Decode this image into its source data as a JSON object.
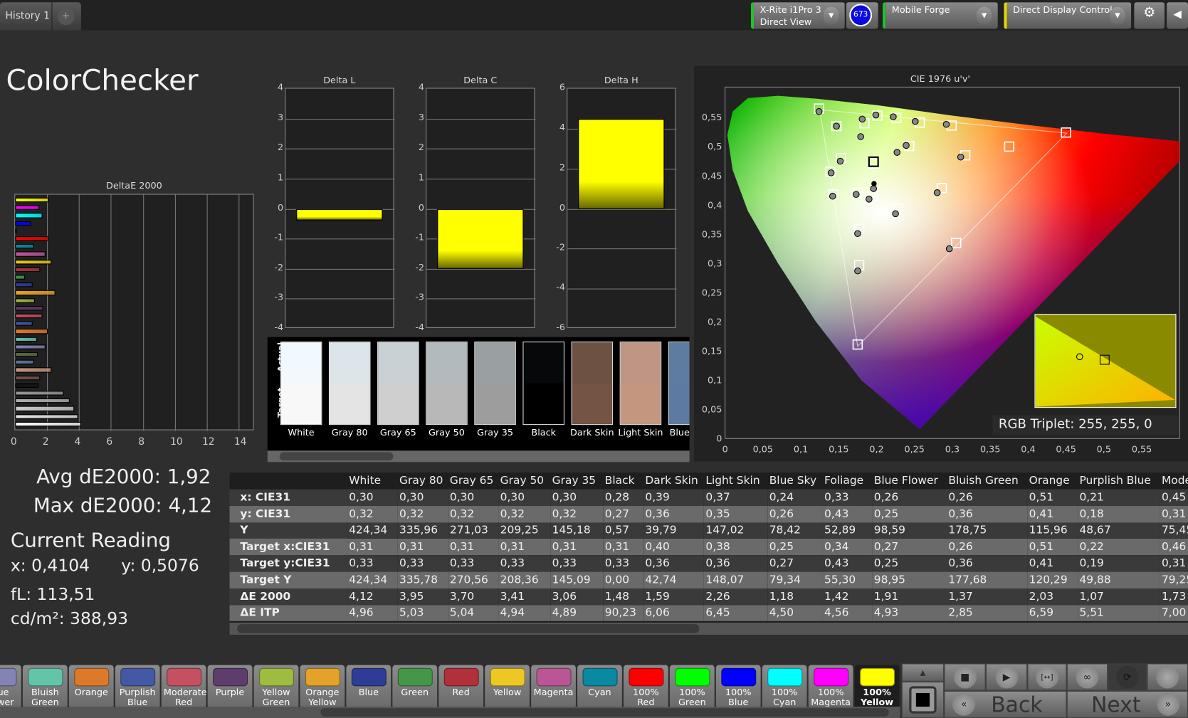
{
  "header": {
    "tab": "History 1",
    "add_tab": "+",
    "meter": {
      "line1": "X-Rite i1Pro 3",
      "line2": "Direct View",
      "badge": "673"
    },
    "generator": "Mobile Forge",
    "display": "Direct Display Control",
    "meter_color": "#22c22c",
    "generator_color": "#22c22c",
    "display_color": "#e6d800"
  },
  "page_title": "ColorChecker",
  "deltaE_chart": {
    "title": "DeltaE 2000",
    "xlim": [
      0,
      15
    ],
    "ticks": [
      "0",
      "2",
      "4",
      "6",
      "8",
      "10",
      "12",
      "14"
    ]
  },
  "delta_charts": [
    {
      "title": "Delta L",
      "ylim": [
        -4,
        4
      ],
      "ticks": [
        "4",
        "3",
        "2",
        "1",
        "0",
        "-1",
        "-2",
        "-3",
        "-4"
      ],
      "value": -0.4
    },
    {
      "title": "Delta C",
      "ylim": [
        -4,
        4
      ],
      "ticks": [
        "4",
        "3",
        "2",
        "1",
        "0",
        "-1",
        "-2",
        "-3",
        "-4"
      ],
      "value": -2.0
    },
    {
      "title": "Delta H",
      "ylim": [
        -6,
        6
      ],
      "ticks": [
        "6",
        "4",
        "2",
        "0",
        "-2",
        "-4",
        "-6"
      ],
      "value": 4.5
    }
  ],
  "swatch_strip": {
    "actual_label": "Actual",
    "target_label": "Target",
    "items": [
      {
        "name": "White",
        "actual": "#f2f9fe",
        "target": "#f8f8f8"
      },
      {
        "name": "Gray 80",
        "actual": "#dce5ea",
        "target": "#e4e4e4"
      },
      {
        "name": "Gray 65",
        "actual": "#c9d1d5",
        "target": "#cfcfcf"
      },
      {
        "name": "Gray 50",
        "actual": "#b3babd",
        "target": "#b8b8b8"
      },
      {
        "name": "Gray 35",
        "actual": "#9a9fa2",
        "target": "#9d9d9d"
      },
      {
        "name": "Black",
        "actual": "#07080a",
        "target": "#000000"
      },
      {
        "name": "Dark Skin",
        "actual": "#6d5244",
        "target": "#735445"
      },
      {
        "name": "Light Skin",
        "actual": "#be9683",
        "target": "#c4957f"
      },
      {
        "name": "Blue Sky",
        "actual": "#5e7ba0",
        "target": "#5d7aa2"
      }
    ]
  },
  "summary": {
    "avg": "Avg dE2000: 1,92",
    "max": "Max dE2000: 4,12",
    "current_label": "Current Reading",
    "x": "x: 0,4104",
    "y": "y: 0,5076",
    "fl": "fL: 113,51",
    "cdm2": "cd/m²: 388,93"
  },
  "cie": {
    "title": "CIE 1976 u'v'",
    "xlim": [
      0,
      0.6
    ],
    "ylim": [
      0,
      0.585
    ],
    "xticks": [
      "0",
      "0,05",
      "0,1",
      "0,15",
      "0,2",
      "0,25",
      "0,3",
      "0,35",
      "0,4",
      "0,45",
      "0,5",
      "0,55"
    ],
    "yticks": [
      "0",
      "0,05",
      "0,1",
      "0,15",
      "0,2",
      "0,25",
      "0,3",
      "0,35",
      "0,4",
      "0,45",
      "0,5",
      "0,55"
    ],
    "gamut": [
      [
        0.125,
        0.563
      ],
      [
        0.451,
        0.523
      ],
      [
        0.175,
        0.158
      ]
    ],
    "targets": [
      [
        0.124,
        0.565
      ],
      [
        0.147,
        0.535
      ],
      [
        0.184,
        0.54
      ],
      [
        0.201,
        0.553
      ],
      [
        0.226,
        0.549
      ],
      [
        0.257,
        0.541
      ],
      [
        0.299,
        0.536
      ],
      [
        0.45,
        0.524
      ],
      [
        0.375,
        0.5
      ],
      [
        0.317,
        0.485
      ],
      [
        0.243,
        0.501
      ],
      [
        0.196,
        0.471
      ],
      [
        0.153,
        0.48
      ],
      [
        0.139,
        0.457
      ],
      [
        0.143,
        0.418
      ],
      [
        0.175,
        0.421
      ],
      [
        0.195,
        0.416
      ],
      [
        0.228,
        0.394
      ],
      [
        0.286,
        0.429
      ],
      [
        0.177,
        0.359
      ],
      [
        0.305,
        0.335
      ],
      [
        0.177,
        0.297
      ],
      [
        0.175,
        0.161
      ]
    ],
    "measured": [
      [
        0.124,
        0.56
      ],
      [
        0.147,
        0.535
      ],
      [
        0.181,
        0.547
      ],
      [
        0.199,
        0.554
      ],
      [
        0.222,
        0.551
      ],
      [
        0.251,
        0.543
      ],
      [
        0.292,
        0.538
      ],
      [
        0.311,
        0.482
      ],
      [
        0.227,
        0.49
      ],
      [
        0.239,
        0.502
      ],
      [
        0.179,
        0.517
      ],
      [
        0.152,
        0.475
      ],
      [
        0.14,
        0.455
      ],
      [
        0.142,
        0.415
      ],
      [
        0.173,
        0.418
      ],
      [
        0.19,
        0.41
      ],
      [
        0.225,
        0.385
      ],
      [
        0.28,
        0.421
      ],
      [
        0.175,
        0.351
      ],
      [
        0.296,
        0.325
      ],
      [
        0.175,
        0.287
      ],
      [
        0.196,
        0.428
      ]
    ],
    "current": [
      0.1966,
      0.4365
    ],
    "rgb_triplet": "RGB Triplet: 255, 255, 0"
  },
  "table": {
    "columns": [
      "White",
      "Gray 80",
      "Gray 65",
      "Gray 50",
      "Gray 35",
      "Black",
      "Dark Skin",
      "Light Skin",
      "Blue Sky",
      "Foliage",
      "Blue Flower",
      "Bluish Green",
      "Orange",
      "Purplish Blue",
      "Modera"
    ],
    "rows": [
      {
        "label": "x: CIE31",
        "values": [
          "0,30",
          "0,30",
          "0,30",
          "0,30",
          "0,30",
          "0,28",
          "0,39",
          "0,37",
          "0,24",
          "0,33",
          "0,26",
          "0,26",
          "0,51",
          "0,21",
          "0,45"
        ]
      },
      {
        "label": "y: CIE31",
        "values": [
          "0,32",
          "0,32",
          "0,32",
          "0,32",
          "0,32",
          "0,27",
          "0,36",
          "0,35",
          "0,26",
          "0,43",
          "0,25",
          "0,36",
          "0,41",
          "0,18",
          "0,31"
        ]
      },
      {
        "label": "Y",
        "values": [
          "424,34",
          "335,96",
          "271,03",
          "209,25",
          "145,18",
          "0,57",
          "39,79",
          "147,02",
          "78,42",
          "52,89",
          "98,59",
          "178,75",
          "115,96",
          "48,67",
          "75,45"
        ]
      },
      {
        "label": "Target x:CIE31",
        "values": [
          "0,31",
          "0,31",
          "0,31",
          "0,31",
          "0,31",
          "0,31",
          "0,40",
          "0,38",
          "0,25",
          "0,34",
          "0,27",
          "0,26",
          "0,51",
          "0,22",
          "0,46"
        ]
      },
      {
        "label": "Target y:CIE31",
        "values": [
          "0,33",
          "0,33",
          "0,33",
          "0,33",
          "0,33",
          "0,33",
          "0,36",
          "0,36",
          "0,27",
          "0,43",
          "0,25",
          "0,36",
          "0,41",
          "0,19",
          "0,31"
        ]
      },
      {
        "label": "Target Y",
        "values": [
          "424,34",
          "335,78",
          "270,56",
          "208,36",
          "145,09",
          "0,00",
          "42,74",
          "148,07",
          "79,34",
          "55,30",
          "98,95",
          "177,68",
          "120,29",
          "49,88",
          "79,25"
        ]
      },
      {
        "label": "ΔE 2000",
        "values": [
          "4,12",
          "3,95",
          "3,70",
          "3,41",
          "3,06",
          "1,48",
          "1,59",
          "2,26",
          "1,18",
          "1,42",
          "1,91",
          "1,37",
          "2,03",
          "1,07",
          "1,73"
        ]
      },
      {
        "label": "ΔE ITP",
        "values": [
          "4,96",
          "5,03",
          "5,04",
          "4,94",
          "4,89",
          "90,23",
          "6,06",
          "6,45",
          "4,50",
          "4,56",
          "4,93",
          "2,85",
          "6,59",
          "5,51",
          "7,00"
        ]
      }
    ]
  },
  "patches": [
    {
      "name": "White",
      "color": "#ffffff",
      "de": 4.12
    },
    {
      "name": "Gray 80",
      "color": "#e6e6e6",
      "de": 3.95
    },
    {
      "name": "Gray 65",
      "color": "#cccccc",
      "de": 3.7
    },
    {
      "name": "Gray 50",
      "color": "#b0b0b0",
      "de": 3.41
    },
    {
      "name": "Gray 35",
      "color": "#999999",
      "de": 3.06
    },
    {
      "name": "Black",
      "color": "#111111",
      "de": 1.48
    },
    {
      "name": "Dark Skin",
      "color": "#735445",
      "de": 1.59
    },
    {
      "name": "Light Skin",
      "color": "#c4957f",
      "de": 2.26
    },
    {
      "name": "Blue Sky",
      "color": "#5d7aa2",
      "de": 1.18
    },
    {
      "name": "Foliage",
      "color": "#5a6b44",
      "de": 1.42
    },
    {
      "name": "Blue Flower",
      "color": "#8383b5",
      "de": 1.91
    },
    {
      "name": "Bluish Green",
      "color": "#63c4aa",
      "de": 1.37
    },
    {
      "name": "Orange",
      "color": "#dd7a2a",
      "de": 2.03
    },
    {
      "name": "Purplish Blue",
      "color": "#4459a5",
      "de": 1.07
    },
    {
      "name": "Moderate Red",
      "color": "#c55060",
      "de": 1.73
    },
    {
      "name": "Purple",
      "color": "#5e3c6c",
      "de": 1.78
    },
    {
      "name": "Yellow Green",
      "color": "#9dbc40",
      "de": 1.23
    },
    {
      "name": "Orange Yellow",
      "color": "#e4a22a",
      "de": 2.5
    },
    {
      "name": "Blue",
      "color": "#2f3c95",
      "de": 1.1
    },
    {
      "name": "Green",
      "color": "#46964a",
      "de": 0.6
    },
    {
      "name": "Red",
      "color": "#b1303a",
      "de": 1.55
    },
    {
      "name": "Yellow",
      "color": "#edc724",
      "de": 2.3
    },
    {
      "name": "Magenta",
      "color": "#ba5596",
      "de": 1.9
    },
    {
      "name": "Cyan",
      "color": "#0a89a3",
      "de": 1.2
    },
    {
      "name": "100% Red",
      "color": "#ff0000",
      "de": 2.1
    },
    {
      "name": "100% Green",
      "color": "#00ff00",
      "de": 0.1
    },
    {
      "name": "100% Blue",
      "color": "#0000ff",
      "de": 1.0
    },
    {
      "name": "100% Cyan",
      "color": "#00ffff",
      "de": 1.7
    },
    {
      "name": "100% Magenta",
      "color": "#ff00ff",
      "de": 1.5
    },
    {
      "name": "100% Yellow",
      "color": "#ffff00",
      "de": 2.1
    }
  ],
  "selected_patch": "100% Yellow",
  "nav": {
    "back": "Back",
    "next": "Next"
  }
}
